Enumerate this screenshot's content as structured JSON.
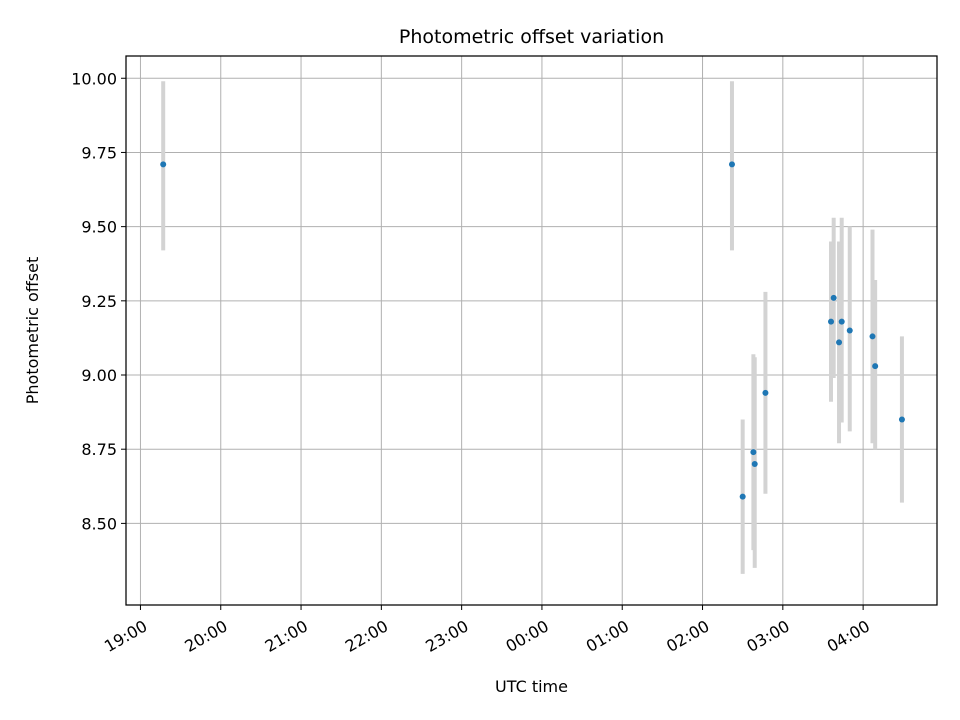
{
  "chart_data": {
    "type": "scatter",
    "title": "Photometric offset variation",
    "xlabel": "UTC time",
    "ylabel": "Photometric offset",
    "x_unit": "UTC hours from 19:00",
    "xlim": [
      -0.18,
      9.92
    ],
    "ylim": [
      8.225,
      10.075
    ],
    "xticks": [
      {
        "label": "19:00",
        "value": 0
      },
      {
        "label": "20:00",
        "value": 1
      },
      {
        "label": "21:00",
        "value": 2
      },
      {
        "label": "22:00",
        "value": 3
      },
      {
        "label": "23:00",
        "value": 4
      },
      {
        "label": "00:00",
        "value": 5
      },
      {
        "label": "01:00",
        "value": 6
      },
      {
        "label": "02:00",
        "value": 7
      },
      {
        "label": "03:00",
        "value": 8
      },
      {
        "label": "04:00",
        "value": 9
      }
    ],
    "yticks": [
      {
        "label": "8.50",
        "value": 8.5
      },
      {
        "label": "8.75",
        "value": 8.75
      },
      {
        "label": "9.00",
        "value": 9.0
      },
      {
        "label": "9.25",
        "value": 9.25
      },
      {
        "label": "9.50",
        "value": 9.5
      },
      {
        "label": "9.75",
        "value": 9.75
      },
      {
        "label": "10.00",
        "value": 10.0
      }
    ],
    "grid": true,
    "point_color": "#1f77b4",
    "errorbar_color": "#d3d3d3",
    "points": [
      {
        "time": "19:17",
        "y": 9.71,
        "ylow": 9.42,
        "yhigh": 9.99
      },
      {
        "time": "02:22",
        "y": 9.71,
        "ylow": 9.42,
        "yhigh": 9.99
      },
      {
        "time": "02:30",
        "y": 8.59,
        "ylow": 8.33,
        "yhigh": 8.85
      },
      {
        "time": "02:38",
        "y": 8.74,
        "ylow": 8.41,
        "yhigh": 9.07
      },
      {
        "time": "02:39",
        "y": 8.7,
        "ylow": 8.35,
        "yhigh": 9.06
      },
      {
        "time": "02:47",
        "y": 8.94,
        "ylow": 8.6,
        "yhigh": 9.28
      },
      {
        "time": "03:36",
        "y": 9.18,
        "ylow": 8.91,
        "yhigh": 9.45
      },
      {
        "time": "03:38",
        "y": 9.26,
        "ylow": 8.99,
        "yhigh": 9.53
      },
      {
        "time": "03:42",
        "y": 9.11,
        "ylow": 8.77,
        "yhigh": 9.45
      },
      {
        "time": "03:44",
        "y": 9.18,
        "ylow": 8.84,
        "yhigh": 9.53
      },
      {
        "time": "03:50",
        "y": 9.15,
        "ylow": 8.81,
        "yhigh": 9.5
      },
      {
        "time": "04:07",
        "y": 9.13,
        "ylow": 8.77,
        "yhigh": 9.49
      },
      {
        "time": "04:09",
        "y": 9.03,
        "ylow": 8.75,
        "yhigh": 9.32
      },
      {
        "time": "04:29",
        "y": 8.85,
        "ylow": 8.57,
        "yhigh": 9.13
      }
    ]
  }
}
